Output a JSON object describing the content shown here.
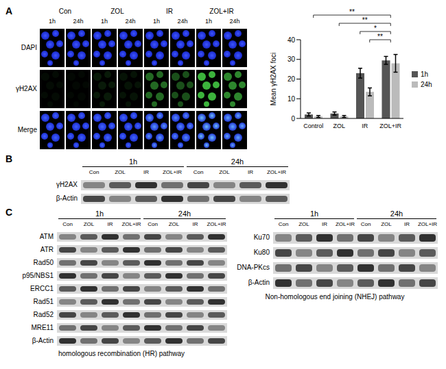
{
  "panel_labels": [
    "A",
    "B",
    "C"
  ],
  "chart_data": {
    "type": "bar",
    "categories": [
      "Control",
      "ZOL",
      "IR",
      "ZOL+IR"
    ],
    "series": [
      {
        "name": "1h",
        "color": "#555555",
        "values": [
          2,
          2.5,
          23,
          29.5
        ],
        "errors": [
          0.8,
          0.8,
          2.5,
          2
        ]
      },
      {
        "name": "24h",
        "color": "#bbbbbb",
        "values": [
          1,
          1,
          13.5,
          28
        ],
        "errors": [
          0.5,
          0.5,
          2,
          4.5
        ]
      }
    ],
    "ylim": [
      0,
      40
    ],
    "yticks": [
      0,
      10,
      20,
      30,
      40
    ],
    "y_label": "Mean γH2AX foci",
    "legend": "right",
    "grid": false,
    "annotations": [
      {
        "from": "Control",
        "to": "ZOL+IR",
        "label": "**"
      },
      {
        "from": "ZOL",
        "to": "ZOL+IR",
        "label": "**"
      },
      {
        "from": "IR",
        "series": "1h",
        "to": "ZOL+IR",
        "label": "*"
      },
      {
        "from": "IR",
        "series": "24h",
        "to": "ZOL+IR",
        "label": "**"
      }
    ]
  },
  "panel_a": {
    "columns": [
      "Con",
      "ZOL",
      "IR",
      "ZOL+IR"
    ],
    "times": [
      "1h",
      "24h"
    ],
    "rows": [
      "DAPI",
      "γH2AX",
      "Merge"
    ]
  },
  "panel_b": {
    "times": [
      "1h",
      "24h"
    ],
    "lanes": [
      "Con",
      "ZOL",
      "IR",
      "ZOL+IR"
    ],
    "rows": [
      "γH2AX",
      "β-Actin"
    ]
  },
  "panel_c": {
    "hr": {
      "times": [
        "1h",
        "24h"
      ],
      "lanes": [
        "Con",
        "ZOL",
        "IR",
        "ZOL+IR"
      ],
      "rows": [
        "ATM",
        "ATR",
        "Rad50",
        "p95/NBS1",
        "ERCC1",
        "Rad51",
        "Rad52",
        "MRE11",
        "β-Actin"
      ],
      "caption": "homologous recombination (HR) pathway"
    },
    "nhej": {
      "times": [
        "1h",
        "24h"
      ],
      "lanes": [
        "Con",
        "ZOL",
        "IR",
        "ZOL+IR"
      ],
      "rows": [
        "Ku70",
        "Ku80",
        "DNA-PKcs",
        "β-Actin"
      ],
      "caption": "Non-homologous end joining (NHEJ) pathway"
    }
  }
}
